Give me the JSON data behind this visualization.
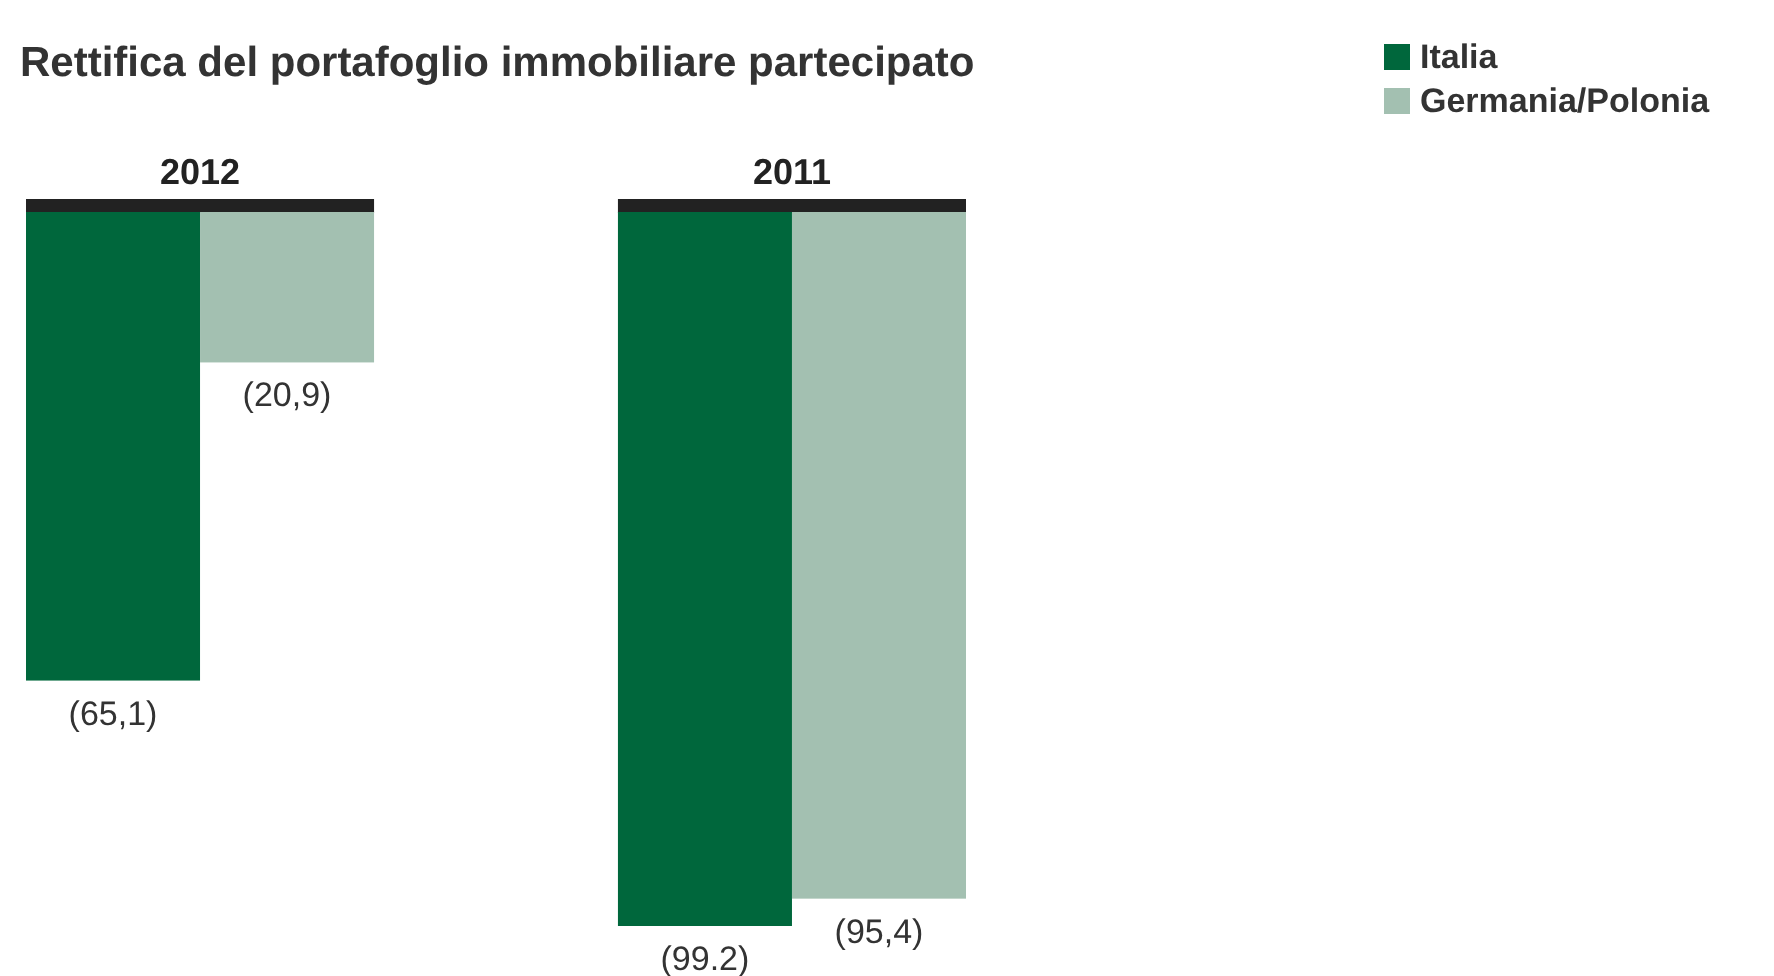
{
  "chart_data": {
    "type": "bar",
    "title": "Rettifica del portafoglio immobiliare partecipato",
    "categories": [
      "2012",
      "2011"
    ],
    "series": [
      {
        "name": "Italia",
        "color": "#00673c",
        "values": [
          -65.1,
          -99.2
        ],
        "value_labels": [
          "(65,1)",
          "(99.2)"
        ]
      },
      {
        "name": "Germania/Polonia",
        "color": "#a3c0b1",
        "values": [
          -20.9,
          -95.4
        ],
        "value_labels": [
          "(20,9)",
          "(95,4)"
        ]
      }
    ],
    "legend": "top right"
  }
}
